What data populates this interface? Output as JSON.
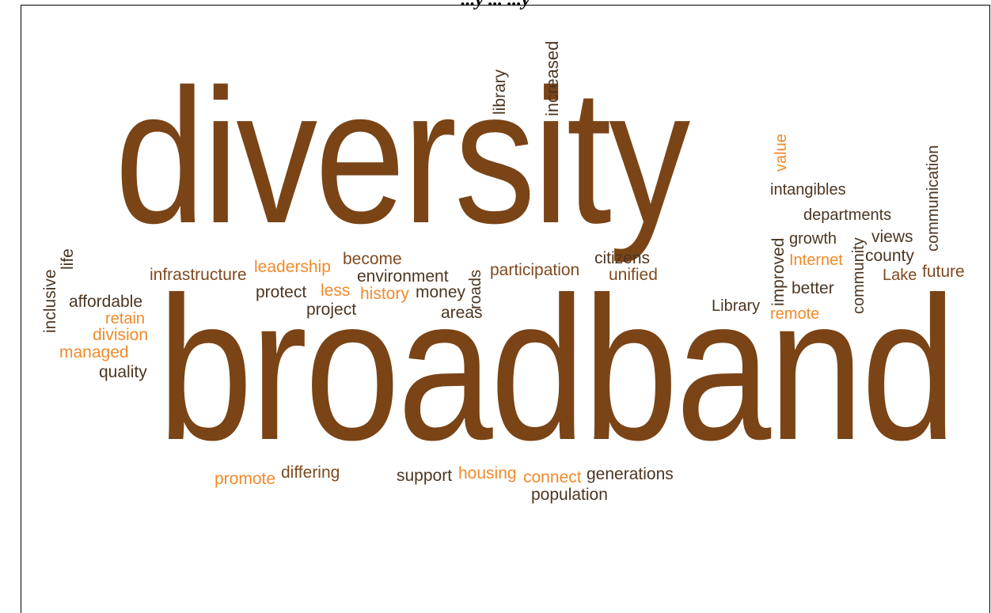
{
  "title_fragment": "...y ... ...y",
  "colors": {
    "big": "#7a4416",
    "dark": "#4d3621",
    "brown": "#7f4a1e",
    "orange": "#f08a2a"
  },
  "words": {
    "diversity": "diversity",
    "broadband": "broadband",
    "library": "library",
    "increased": "increased",
    "value": "value",
    "communication": "communication",
    "intangibles": "intangibles",
    "departments": "departments",
    "growth": "growth",
    "community": "community",
    "views": "views",
    "improved": "improved",
    "internet": "Internet",
    "county": "county",
    "lake": "Lake",
    "future": "future",
    "better": "better",
    "library_cap": "Library",
    "remote": "remote",
    "citizens": "citizens",
    "unified": "unified",
    "participation": "participation",
    "roads": "roads",
    "money": "money",
    "areas": "areas",
    "become": "become",
    "environment": "environment",
    "history": "history",
    "less": "less",
    "protect": "protect",
    "project": "project",
    "leadership": "leadership",
    "infrastructure": "infrastructure",
    "life": "life",
    "inclusive": "inclusive",
    "affordable": "affordable",
    "retain": "retain",
    "division": "division",
    "managed": "managed",
    "quality": "quality",
    "promote": "promote",
    "differing": "differing",
    "support": "support",
    "housing": "housing",
    "connect": "connect",
    "generations": "generations",
    "population": "population"
  }
}
